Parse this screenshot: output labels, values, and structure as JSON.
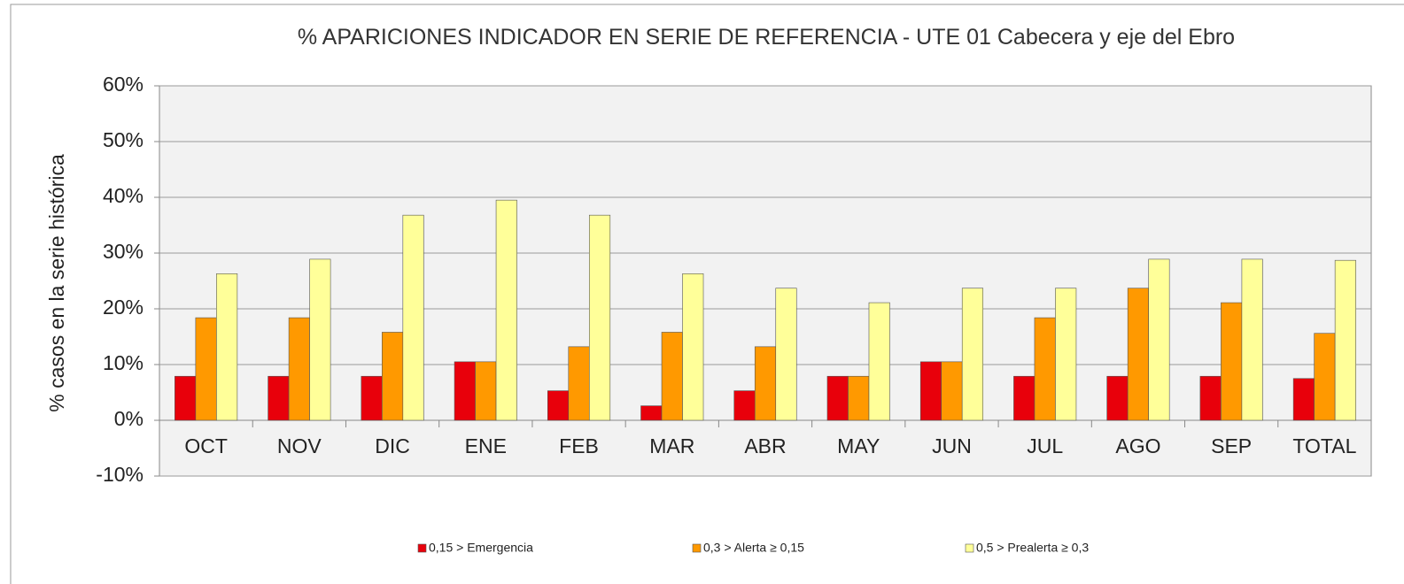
{
  "chart_data": {
    "type": "bar",
    "title": "% APARICIONES INDICADOR EN SERIE DE REFERENCIA - UTE 01 Cabecera y eje del Ebro",
    "y_label": "% casos en la serie histórica",
    "categories": [
      "OCT",
      "NOV",
      "DIC",
      "ENE",
      "FEB",
      "MAR",
      "ABR",
      "MAY",
      "JUN",
      "JUL",
      "AGO",
      "SEP",
      "TOTAL"
    ],
    "series": [
      {
        "name": "0,15 > Emergencia",
        "color": "#e8000b",
        "values": [
          7.9,
          7.9,
          7.9,
          10.5,
          5.3,
          2.6,
          5.3,
          7.9,
          10.5,
          7.9,
          7.9,
          7.9,
          7.5
        ]
      },
      {
        "name": "0,3 > Alerta ≥ 0,15",
        "color": "#ff9900",
        "values": [
          18.4,
          18.4,
          15.8,
          10.5,
          13.2,
          15.8,
          13.2,
          7.9,
          10.5,
          18.4,
          23.7,
          21.1,
          15.6
        ]
      },
      {
        "name": "0,5 > Prealerta ≥ 0,3",
        "color": "#ffff99",
        "values": [
          26.3,
          28.9,
          36.8,
          39.5,
          36.8,
          26.3,
          23.7,
          21.1,
          23.7,
          23.7,
          28.9,
          28.9,
          28.7
        ]
      }
    ],
    "ylim": [
      -10,
      60
    ],
    "yticks": [
      {
        "value": -10,
        "label": "-10%"
      },
      {
        "value": 0,
        "label": "0%"
      },
      {
        "value": 10,
        "label": "10%"
      },
      {
        "value": 20,
        "label": "20%"
      },
      {
        "value": 30,
        "label": "30%"
      },
      {
        "value": 40,
        "label": "40%"
      },
      {
        "value": 50,
        "label": "50%"
      },
      {
        "value": 60,
        "label": "60%"
      }
    ],
    "grid": true,
    "legend": "bottom"
  }
}
